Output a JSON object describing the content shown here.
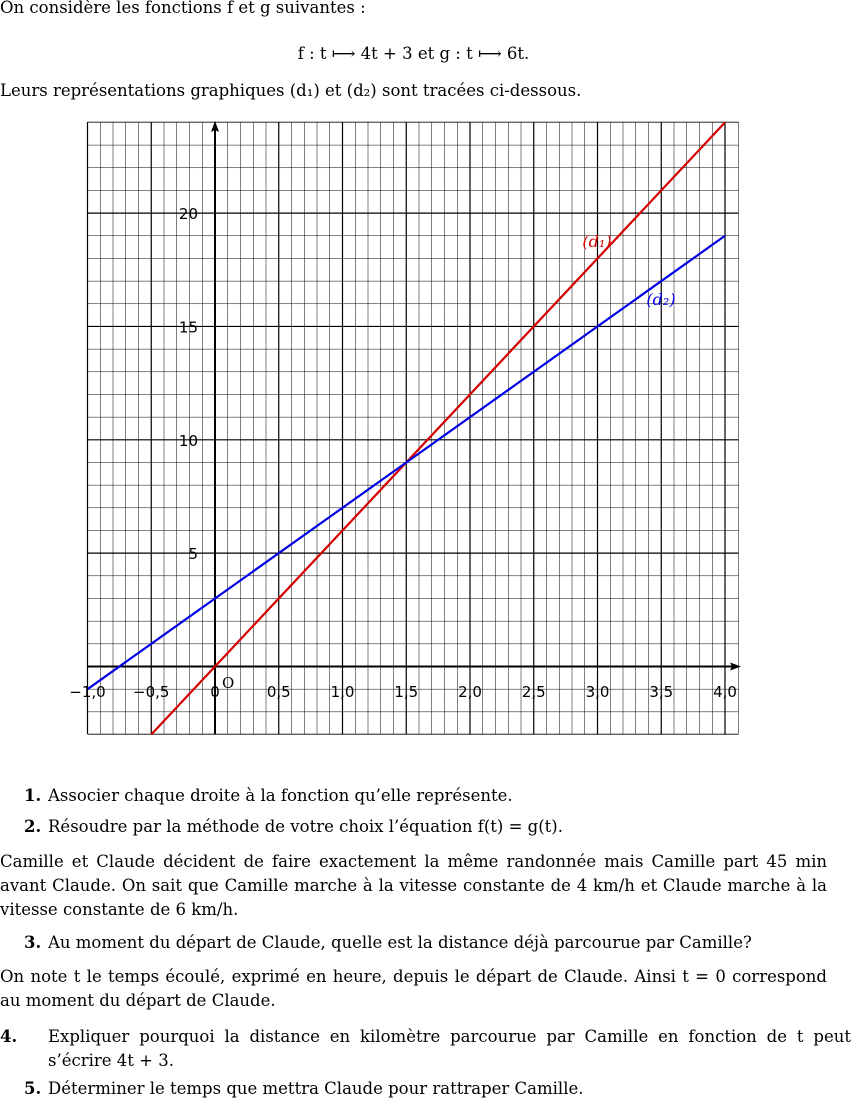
{
  "intro": {
    "line1": "On considère les fonctions f et g suivantes :",
    "formula": "f : t ⟼ 4t + 3    et    g : t ⟼ 6t.",
    "line2": "Leurs représentations graphiques (d₁) et (d₂) sont tracées ci-dessous."
  },
  "chart_data": {
    "type": "line",
    "xlim": [
      -1.0,
      4.0
    ],
    "ylim": [
      -3,
      24
    ],
    "x_ticks": [
      "−1,0",
      "−0,5",
      "0",
      "0,5",
      "1,0",
      "1,5",
      "2,0",
      "2,5",
      "3,0",
      "3,5",
      "4,0"
    ],
    "y_ticks": [
      "5",
      "10",
      "15",
      "20"
    ],
    "origin_label": "O",
    "grid": true,
    "series": [
      {
        "name": "(d₁)",
        "color": "#d40000",
        "x": [
          -0.5,
          4.0
        ],
        "y": [
          -3,
          24
        ]
      },
      {
        "name": "(d₂)",
        "color": "#0000e6",
        "x": [
          -1.0,
          4.0
        ],
        "y": [
          -1,
          19
        ]
      }
    ]
  },
  "questions": {
    "q1": {
      "num": "1.",
      "text": "Associer chaque droite à la fonction qu’elle représente."
    },
    "q2": {
      "num": "2.",
      "text": "Résoudre par la méthode de votre choix l’équation f(t) = g(t)."
    },
    "p1": "Camille et Claude décident de faire exactement la même randonnée mais Camille part 45 min avant Claude. On sait que Camille marche à la vitesse constante de 4 km/h et Claude marche à la vitesse constante de 6 km/h.",
    "q3": {
      "num": "3.",
      "text": "Au moment du départ de Claude, quelle est la distance déjà parcourue par Camille?"
    },
    "p2": "On note t le temps écoulé, exprimé en heure, depuis le départ de Claude. Ainsi t = 0 correspond au moment du départ de Claude.",
    "q4": {
      "num": "4.",
      "text": "Expliquer pourquoi la distance en kilomètre parcourue par Camille en fonction de t peut s’écrire 4t + 3."
    },
    "q5": {
      "num": "5.",
      "text": "Déterminer le temps que mettra Claude pour rattraper Camille."
    }
  }
}
